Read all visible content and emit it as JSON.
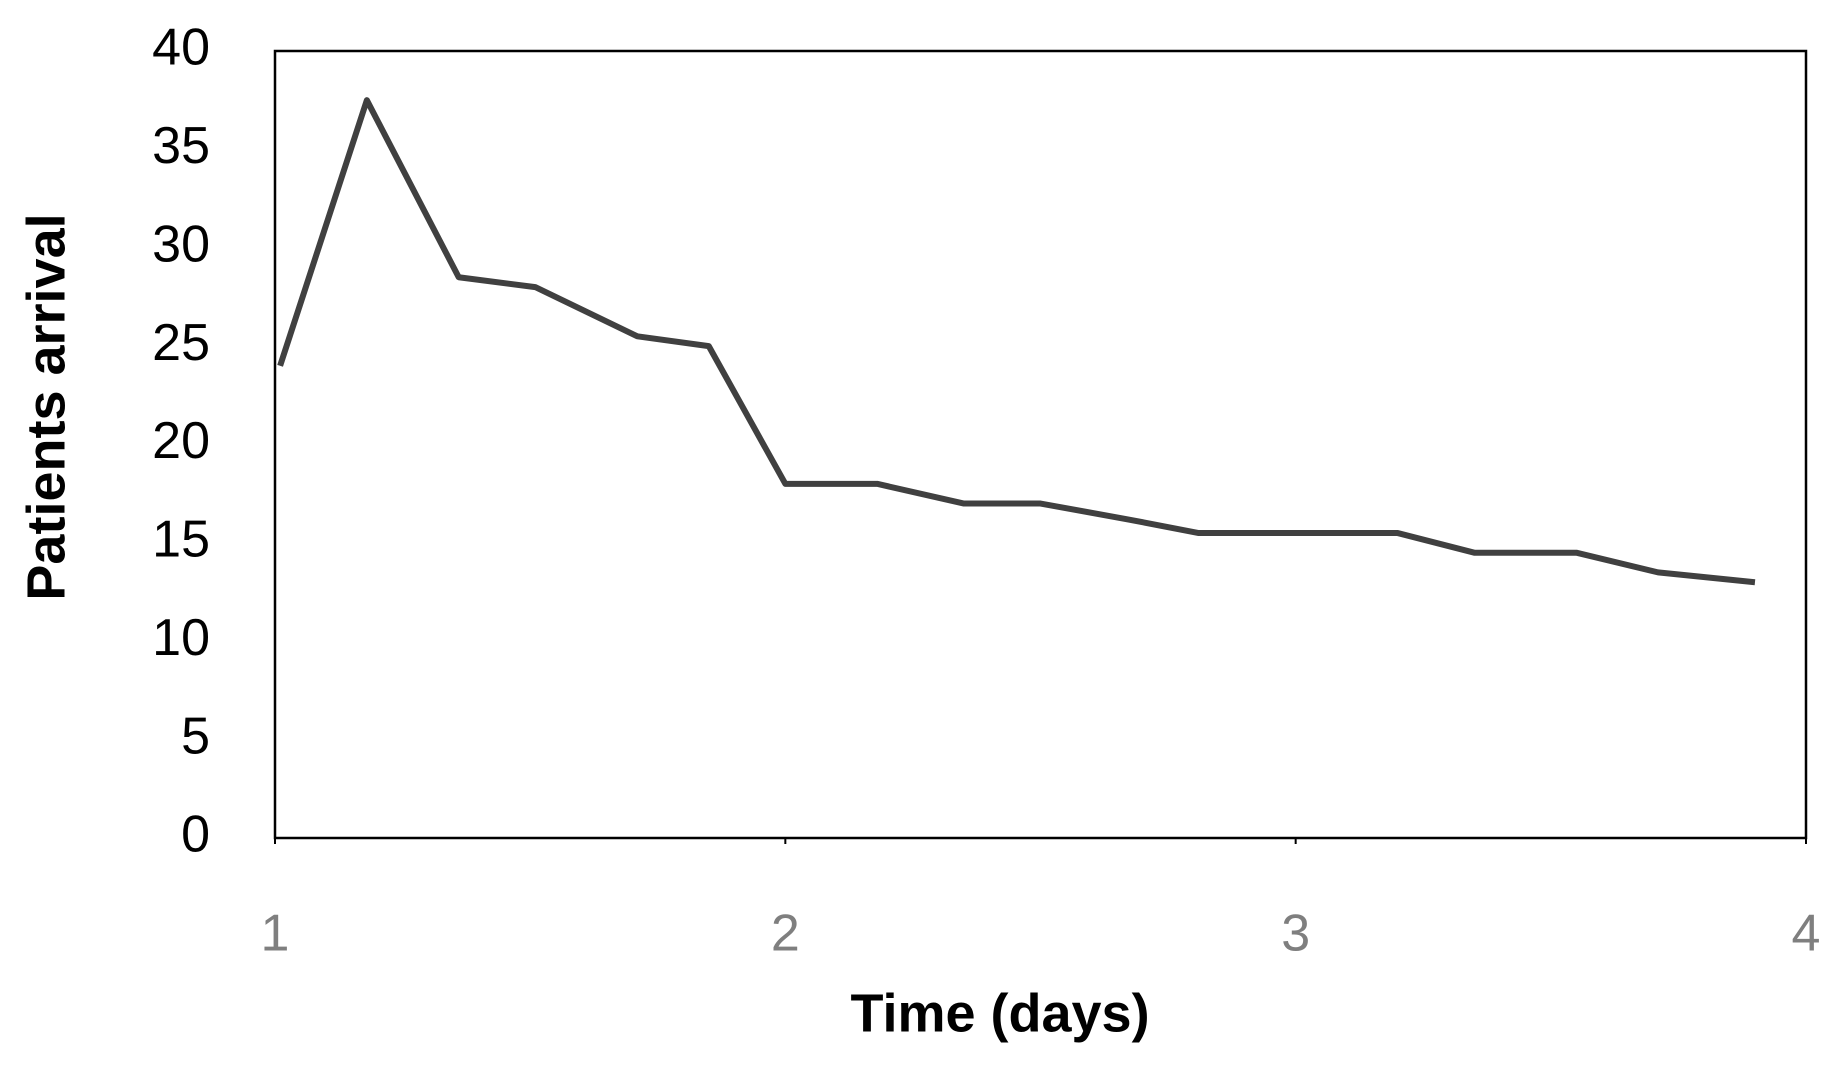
{
  "chart_data": {
    "type": "line",
    "x_label": "Time (days)",
    "y_label": "Patients arrival",
    "x": [
      1.01,
      1.18,
      1.36,
      1.51,
      1.71,
      1.85,
      2.0,
      2.18,
      2.35,
      2.5,
      2.67,
      2.81,
      3.0,
      3.2,
      3.35,
      3.55,
      3.71,
      3.9
    ],
    "series": [
      {
        "color": "#404040",
        "values": [
          24,
          37.5,
          28.5,
          28,
          25.5,
          25,
          18,
          18,
          17,
          17,
          16.2,
          15.5,
          15.5,
          15.5,
          14.5,
          14.5,
          13.5,
          13
        ]
      }
    ],
    "xlim": [
      1,
      4
    ],
    "xticks": [
      1,
      2,
      3,
      4
    ],
    "ylim": [
      0,
      40
    ],
    "yticks": [
      0,
      5,
      10,
      15,
      20,
      25,
      30,
      35,
      40
    ],
    "grid": false
  }
}
